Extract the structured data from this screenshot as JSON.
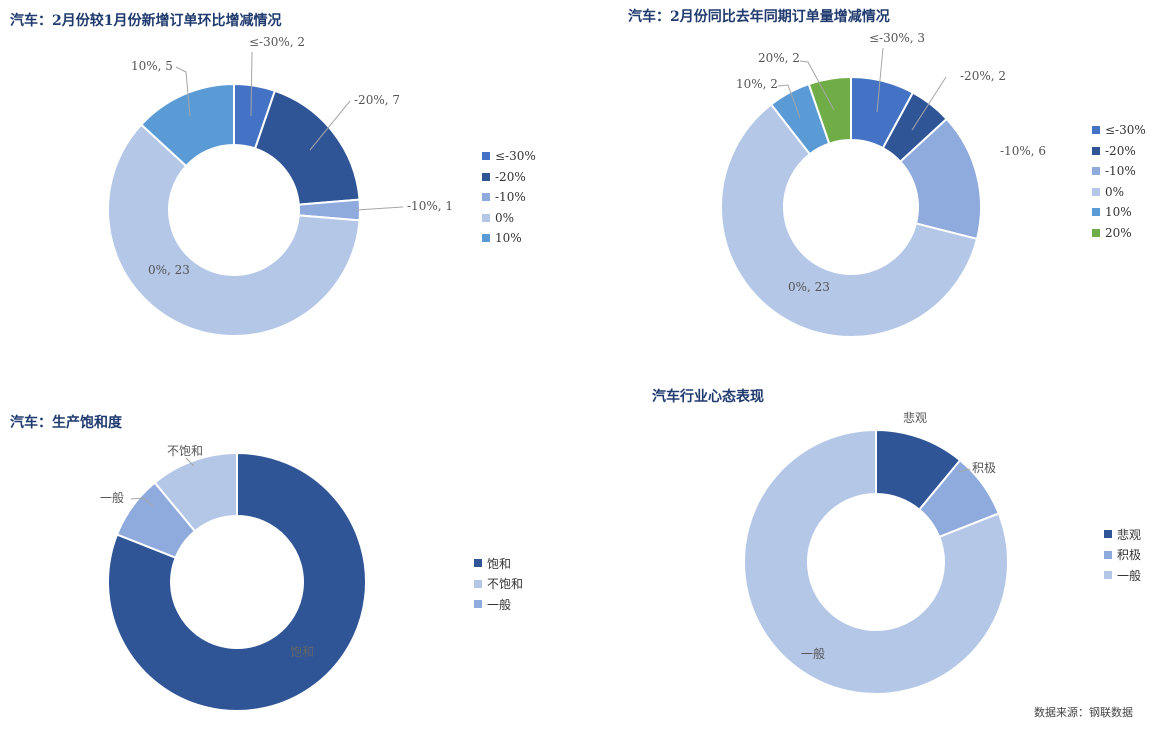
{
  "palette": {
    "le_neg30": "#4472c4",
    "neg20": "#2f5597",
    "neg10": "#8faadc",
    "zero": "#b4c7e7",
    "pos10": "#5b9bd5",
    "pos20": "#70ad47",
    "saturated": "#2f5597",
    "unsaturated": "#b4c7e7",
    "normal": "#8faadc",
    "pessimistic": "#2f5597",
    "positive": "#8faadc",
    "general": "#b4c7e7"
  },
  "source": "数据来源：钢联数据",
  "chart_data": [
    {
      "type": "pie",
      "donut": true,
      "title": "汽车：2月份较1月份新增订单环比增减情况",
      "legend": [
        "≤-30%",
        "-20%",
        "-10%",
        "0%",
        "10%"
      ],
      "slices": [
        {
          "label": "≤-30%",
          "value": 2,
          "text": "≤-30%, 2",
          "color": "#4472c4"
        },
        {
          "label": "-20%",
          "value": 7,
          "text": "-20%, 7",
          "color": "#2f5597"
        },
        {
          "label": "-10%",
          "value": 1,
          "text": "-10%, 1",
          "color": "#8faadc"
        },
        {
          "label": "0%",
          "value": 23,
          "text": "0%, 23",
          "color": "#b4c7e7"
        },
        {
          "label": "10%",
          "value": 5,
          "text": "10%, 5",
          "color": "#5b9bd5"
        }
      ]
    },
    {
      "type": "pie",
      "donut": true,
      "title": "汽车：2月份同比去年同期订单量增减情况",
      "legend": [
        "≤-30%",
        "-20%",
        "-10%",
        "0%",
        "10%",
        "20%"
      ],
      "slices": [
        {
          "label": "≤-30%",
          "value": 3,
          "text": "≤-30%, 3",
          "color": "#4472c4"
        },
        {
          "label": "-20%",
          "value": 2,
          "text": "-20%, 2",
          "color": "#2f5597"
        },
        {
          "label": "-10%",
          "value": 6,
          "text": "-10%, 6",
          "color": "#8faadc"
        },
        {
          "label": "0%",
          "value": 23,
          "text": "0%, 23",
          "color": "#b4c7e7"
        },
        {
          "label": "10%",
          "value": 2,
          "text": "10%, 2",
          "color": "#5b9bd5"
        },
        {
          "label": "20%",
          "value": 2,
          "text": "20%, 2",
          "color": "#70ad47"
        }
      ]
    },
    {
      "type": "pie",
      "donut": true,
      "title": "汽车：生产饱和度",
      "legend": [
        "饱和",
        "不饱和",
        "一般"
      ],
      "slices": [
        {
          "label": "饱和",
          "value": 81,
          "text": "饱和",
          "color": "#2f5597"
        },
        {
          "label": "一般",
          "value": 8,
          "text": "一般",
          "color": "#8faadc"
        },
        {
          "label": "不饱和",
          "value": 11,
          "text": "不饱和",
          "color": "#b4c7e7"
        }
      ]
    },
    {
      "type": "pie",
      "donut": true,
      "title": "汽车行业心态表现",
      "legend": [
        "悲观",
        "积极",
        "一般"
      ],
      "slices": [
        {
          "label": "悲观",
          "value": 11,
          "text": "悲观",
          "color": "#2f5597"
        },
        {
          "label": "积极",
          "value": 8,
          "text": "积极",
          "color": "#8faadc"
        },
        {
          "label": "一般",
          "value": 81,
          "text": "一般",
          "color": "#b4c7e7"
        }
      ]
    }
  ]
}
